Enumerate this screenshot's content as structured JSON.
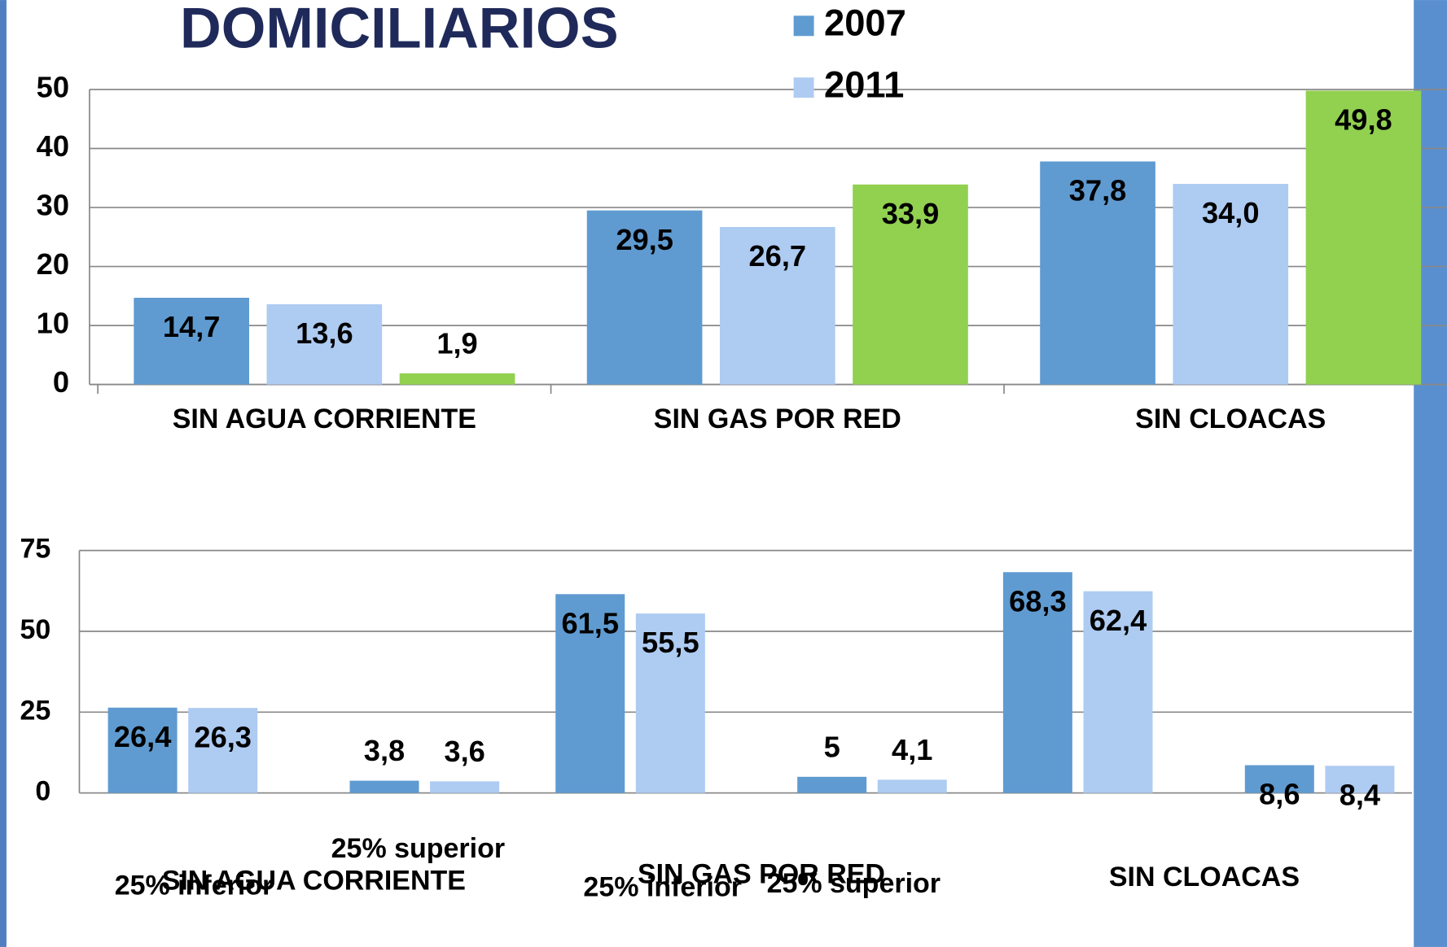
{
  "chart_data": [
    {
      "type": "bar",
      "title": "DOMICILIARIOS",
      "categories": [
        "SIN AGUA CORRIENTE",
        "SIN GAS POR RED",
        "SIN CLOACAS"
      ],
      "series": [
        {
          "name": "2007",
          "color": "#5f9bd1",
          "values": [
            14.7,
            29.5,
            37.8
          ],
          "value_labels": [
            "14,7",
            "29,5",
            "37,8"
          ]
        },
        {
          "name": "2011",
          "color": "#aecbf2",
          "values": [
            13.6,
            26.7,
            34.0
          ],
          "value_labels": [
            "13,6",
            "26,7",
            "34,0"
          ]
        },
        {
          "color": "#92d050",
          "values": [
            1.9,
            33.9,
            49.8
          ],
          "value_labels": [
            "1,9",
            "33,9",
            "49,8"
          ]
        }
      ],
      "ylim": [
        0,
        50
      ],
      "yticks": [
        0,
        10,
        20,
        30,
        40,
        50
      ],
      "grid": true,
      "legend": "top"
    },
    {
      "type": "bar",
      "groups": [
        "SIN AGUA CORRIENTE",
        "SIN GAS POR RED",
        "SIN CLOACAS"
      ],
      "categories": [
        "25% inferior",
        "25% superior",
        "25% inferior",
        "25% superior",
        null,
        null
      ],
      "series": [
        {
          "name": "2007",
          "color": "#5f9bd1",
          "values": [
            26.4,
            3.8,
            61.5,
            5,
            68.3,
            8.6
          ],
          "value_labels": [
            "26,4",
            "3,8",
            "61,5",
            "5",
            "68,3",
            "8,6"
          ]
        },
        {
          "name": "2011",
          "color": "#aecbf2",
          "values": [
            26.3,
            3.6,
            55.5,
            4.1,
            62.4,
            8.4
          ],
          "value_labels": [
            "26,3",
            "3,6",
            "55,5",
            "4,1",
            "62,4",
            "8,4"
          ]
        }
      ],
      "ylim": [
        0,
        75
      ],
      "yticks": [
        0,
        25,
        50,
        75
      ],
      "grid": true
    }
  ]
}
